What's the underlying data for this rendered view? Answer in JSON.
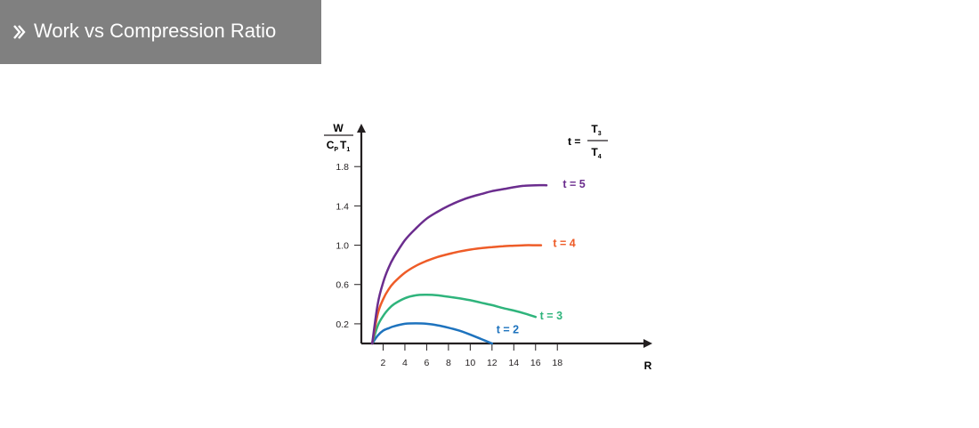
{
  "header": {
    "title": "Work vs Compression Ratio",
    "icon": "double-chevron-right-icon"
  },
  "chart_data": {
    "type": "line",
    "y_axis": {
      "numerator": "W",
      "denominator_main_1": "C",
      "denominator_sub_1": "P",
      "denominator_main_2": "T",
      "denominator_sub_2": "1"
    },
    "xlabel": "R",
    "x_ticks": [
      2,
      4,
      6,
      8,
      10,
      12,
      14,
      16,
      18
    ],
    "y_ticks": [
      0.2,
      0.6,
      1.0,
      1.4,
      1.8
    ],
    "y_tick_labels": [
      "0.2",
      "0.6",
      "1.0",
      "1.4",
      "1.8"
    ],
    "xlim": [
      0,
      25.5
    ],
    "ylim": [
      0,
      2.3
    ],
    "formula": {
      "lhs": "t =",
      "num_main": "T",
      "num_sub": "3",
      "den_main": "T",
      "den_sub": "4"
    },
    "series": [
      {
        "name": "t = 2",
        "color": "#1e73be",
        "label_at": [
          12.4,
          0.14
        ],
        "x": [
          1,
          1.5,
          2,
          2.5,
          3,
          4,
          5,
          6,
          7,
          8,
          9,
          10,
          11,
          12
        ],
        "y": [
          0.0,
          0.08,
          0.13,
          0.155,
          0.175,
          0.2,
          0.205,
          0.2,
          0.185,
          0.16,
          0.13,
          0.09,
          0.045,
          0.0
        ]
      },
      {
        "name": "t = 3",
        "color": "#2fb47c",
        "label_at": [
          16.4,
          0.28
        ],
        "x": [
          1,
          1.5,
          2,
          2.5,
          3,
          4,
          5,
          6,
          7,
          8,
          9,
          10,
          11,
          12,
          13,
          14,
          15,
          16
        ],
        "y": [
          0.0,
          0.18,
          0.28,
          0.35,
          0.4,
          0.46,
          0.49,
          0.495,
          0.49,
          0.475,
          0.46,
          0.44,
          0.415,
          0.39,
          0.36,
          0.335,
          0.305,
          0.27
        ]
      },
      {
        "name": "t = 4",
        "color": "#ee5c28",
        "label_at": [
          17.6,
          1.02
        ],
        "x": [
          1,
          1.5,
          2,
          2.5,
          3,
          4,
          5,
          6,
          7,
          8,
          9,
          10,
          11,
          12,
          13,
          14,
          15,
          16,
          16.5
        ],
        "y": [
          0.0,
          0.3,
          0.45,
          0.55,
          0.62,
          0.72,
          0.79,
          0.84,
          0.88,
          0.91,
          0.935,
          0.955,
          0.97,
          0.98,
          0.99,
          0.995,
          1.0,
          1.0,
          1.0
        ]
      },
      {
        "name": "t = 5",
        "color": "#6b2d8e",
        "label_at": [
          18.5,
          1.62
        ],
        "x": [
          1,
          1.5,
          2,
          2.5,
          3,
          4,
          5,
          6,
          7,
          8,
          9,
          10,
          11,
          12,
          13,
          14,
          15,
          16,
          17
        ],
        "y": [
          0.0,
          0.4,
          0.62,
          0.77,
          0.88,
          1.05,
          1.17,
          1.27,
          1.34,
          1.4,
          1.45,
          1.49,
          1.52,
          1.55,
          1.57,
          1.59,
          1.605,
          1.61,
          1.61
        ]
      }
    ]
  }
}
